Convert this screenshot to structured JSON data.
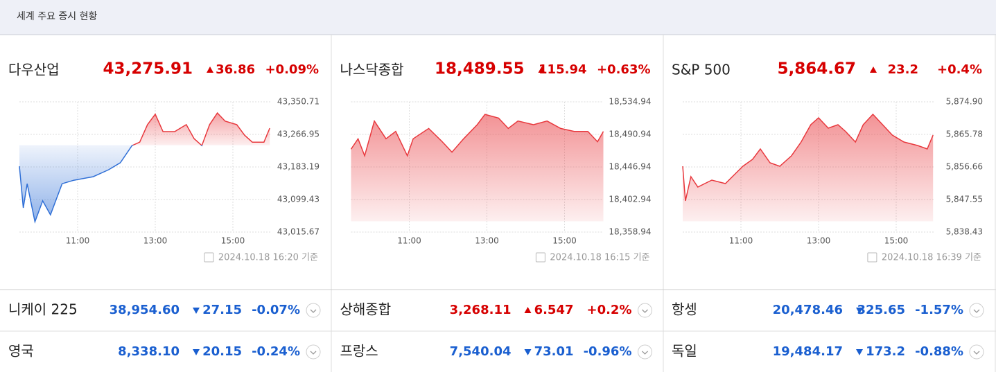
{
  "header": {
    "title": "세계 주요 증시 현황"
  },
  "chart_data": [
    {
      "type": "line",
      "name": "다우산업",
      "value": "43,275.91",
      "change": "36.86",
      "change_pct": "+0.09%",
      "x": [
        9.5,
        9.6,
        9.7,
        9.9,
        10.1,
        10.3,
        10.6,
        10.9,
        11.4,
        11.8,
        12.1,
        12.4,
        12.6,
        12.8,
        13.0,
        13.2,
        13.5,
        13.8,
        14.0,
        14.2,
        14.4,
        14.6,
        14.8,
        15.1,
        15.3,
        15.5,
        15.8,
        15.95
      ],
      "series": [
        {
          "color": "#e8383d",
          "color_below": "#2f6fd6",
          "values": [
            43185,
            43078,
            43140,
            43042,
            43096,
            43060,
            43140,
            43149,
            43158,
            43176,
            43194,
            43238,
            43247,
            43292,
            43319,
            43274,
            43274,
            43292,
            43256,
            43238,
            43292,
            43322,
            43301,
            43292,
            43265,
            43247,
            43247,
            43283
          ]
        }
      ],
      "xlim": [
        9.5,
        16
      ],
      "xticks": [
        {
          "value": 11,
          "label": "11:00"
        },
        {
          "value": 13,
          "label": "13:00"
        },
        {
          "value": 15,
          "label": "15:00"
        }
      ],
      "ylim": [
        43015.67,
        43350.71
      ],
      "yticks": [
        {
          "value": 43015.67,
          "label": "43,015.67"
        },
        {
          "value": 43099.43,
          "label": "43,099.43"
        },
        {
          "value": 43183.19,
          "label": "43,183.19"
        },
        {
          "value": 43266.95,
          "label": "43,266.95"
        },
        {
          "value": 43350.71,
          "label": "43,350.71"
        }
      ],
      "grid": true,
      "timestamp": "2024.10.18 16:20 기준"
    },
    {
      "type": "line",
      "name": "나스닥종합",
      "value": "18,489.55",
      "change": "115.94",
      "change_pct": "+0.63%",
      "x": [
        9.5,
        9.68,
        9.85,
        10.1,
        10.4,
        10.65,
        10.95,
        11.1,
        11.5,
        11.85,
        12.1,
        12.4,
        12.75,
        12.95,
        13.3,
        13.55,
        13.8,
        14.2,
        14.55,
        14.9,
        15.25,
        15.6,
        15.85,
        16.0
      ],
      "series": [
        {
          "color": "#e8383d",
          "color_below": "#2f6fd6",
          "values": [
            18471,
            18485,
            18462,
            18509,
            18485,
            18495,
            18462,
            18485,
            18499,
            18481,
            18467,
            18485,
            18504,
            18518,
            18513,
            18499,
            18509,
            18504,
            18509,
            18499,
            18495,
            18495,
            18481,
            18495
          ]
        }
      ],
      "xlim": [
        9.5,
        16
      ],
      "xticks": [
        {
          "value": 11,
          "label": "11:00"
        },
        {
          "value": 13,
          "label": "13:00"
        },
        {
          "value": 15,
          "label": "15:00"
        }
      ],
      "ylim": [
        18358.94,
        18534.94
      ],
      "yticks": [
        {
          "value": 18358.94,
          "label": "18,358.94"
        },
        {
          "value": 18402.94,
          "label": "18,402.94"
        },
        {
          "value": 18446.94,
          "label": "18,446.94"
        },
        {
          "value": 18490.94,
          "label": "18,490.94"
        },
        {
          "value": 18534.94,
          "label": "18,534.94"
        }
      ],
      "grid": true,
      "timestamp": "2024.10.18 16:15 기준"
    },
    {
      "type": "line",
      "name": "S&P 500",
      "value": "5,864.67",
      "change": "23.2",
      "change_pct": "+0.4%",
      "x": [
        9.5,
        9.57,
        9.71,
        9.89,
        10.25,
        10.6,
        10.87,
        11.05,
        11.3,
        11.5,
        11.75,
        12.0,
        12.3,
        12.55,
        12.8,
        13.0,
        13.25,
        13.5,
        13.7,
        13.95,
        14.15,
        14.4,
        14.65,
        14.9,
        15.2,
        15.55,
        15.8,
        15.95
      ],
      "series": [
        {
          "color": "#e8383d",
          "color_below": "#2f6fd6",
          "values": [
            5856.86,
            5847.16,
            5853.95,
            5851.04,
            5852.98,
            5852.01,
            5854.92,
            5856.86,
            5858.8,
            5861.71,
            5857.83,
            5856.86,
            5859.77,
            5863.65,
            5868.5,
            5870.44,
            5867.53,
            5868.5,
            5866.56,
            5863.65,
            5868.5,
            5871.41,
            5868.5,
            5865.59,
            5863.65,
            5862.68,
            5861.71,
            5865.59
          ]
        }
      ],
      "xlim": [
        9.5,
        16
      ],
      "xticks": [
        {
          "value": 11,
          "label": "11:00"
        },
        {
          "value": 13,
          "label": "13:00"
        },
        {
          "value": 15,
          "label": "15:00"
        }
      ],
      "ylim": [
        5838.43,
        5874.9
      ],
      "yticks": [
        {
          "value": 5838.43,
          "label": "5,838.43"
        },
        {
          "value": 5847.55,
          "label": "5,847.55"
        },
        {
          "value": 5856.66,
          "label": "5,856.66"
        },
        {
          "value": 5865.78,
          "label": "5,865.78"
        },
        {
          "value": 5874.9,
          "label": "5,874.90"
        }
      ],
      "grid": true,
      "timestamp": "2024.10.18 16:39 기준"
    }
  ],
  "indices": [
    {
      "name": "니케이 225",
      "value": "38,954.60",
      "change": "27.15",
      "change_pct": "-0.07%"
    },
    {
      "name": "상해종합",
      "value": "3,268.11",
      "change": "6.547",
      "change_pct": "+0.2%"
    },
    {
      "name": "항셍",
      "value": "20,478.46",
      "change": "325.65",
      "change_pct": "-1.57%"
    },
    {
      "name": "영국",
      "value": "8,338.10",
      "change": "20.15",
      "change_pct": "-0.24%"
    },
    {
      "name": "프랑스",
      "value": "7,540.04",
      "change": "73.01",
      "change_pct": "-0.96%"
    },
    {
      "name": "독일",
      "value": "19,484.17",
      "change": "173.2",
      "change_pct": "-0.88%"
    }
  ]
}
